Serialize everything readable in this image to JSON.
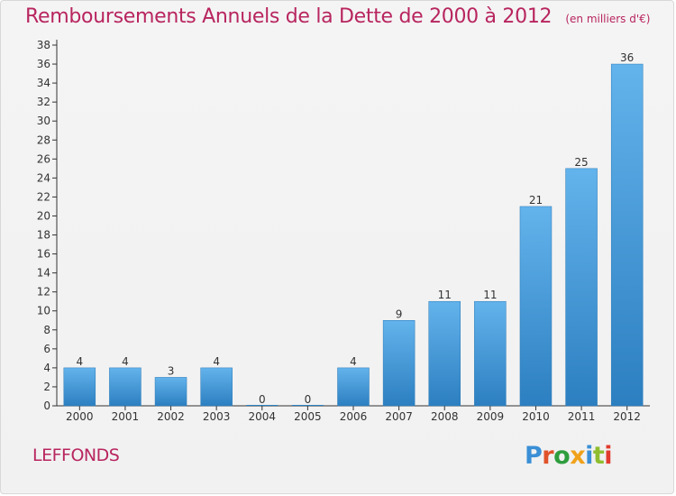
{
  "header": {
    "title": "Remboursements Annuels de la Dette de 2000 à 2012",
    "subtitle": "(en milliers d'€)"
  },
  "commune": "LEFFONDS",
  "logo": {
    "text": "Proxiti",
    "letter_colors": [
      "#3a8fd6",
      "#e0532b",
      "#2e9d3e",
      "#f0a21a",
      "#3a8fd6",
      "#8fbd2f",
      "#e23b2e"
    ]
  },
  "colors": {
    "title": "#b8255f",
    "bar_top": "#63b3ec",
    "bar_bottom": "#2c7fc0",
    "axis": "#333333"
  },
  "chart_data": {
    "type": "bar",
    "title": "Remboursements Annuels de la Dette de 2000 à 2012",
    "subtitle": "(en milliers d'€)",
    "categories": [
      "2000",
      "2001",
      "2002",
      "2003",
      "2004",
      "2005",
      "2006",
      "2007",
      "2008",
      "2009",
      "2010",
      "2011",
      "2012"
    ],
    "values": [
      4,
      4,
      3,
      4,
      0,
      0,
      4,
      9,
      11,
      11,
      21,
      25,
      36
    ],
    "ylim": [
      0,
      38
    ],
    "ytick_step": 2,
    "xlabel": "",
    "ylabel": "",
    "grid": false,
    "legend": "none"
  }
}
